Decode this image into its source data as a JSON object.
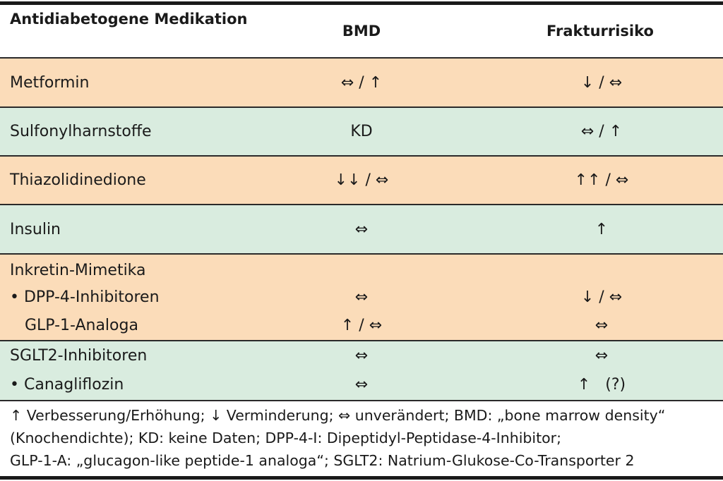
{
  "header": {
    "col_medication": "Antidiabetogene Medikation",
    "col_bmd": "BMD",
    "col_fracture": "Frakturrisiko"
  },
  "rows": [
    {
      "color": "#fbdcb9",
      "lines": [
        {
          "name": "Metformin",
          "bmd": "⇔ / ↑",
          "fracture": "↓ / ⇔"
        }
      ]
    },
    {
      "color": "#d9ecdf",
      "lines": [
        {
          "name": "Sulfonylharnstoffe",
          "bmd": "KD",
          "fracture": "⇔ / ↑"
        }
      ]
    },
    {
      "color": "#fbdcb9",
      "lines": [
        {
          "name": "Thiazolidinedione",
          "bmd": "↓↓ / ⇔",
          "fracture": "↑↑ / ⇔"
        }
      ]
    },
    {
      "color": "#d9ecdf",
      "lines": [
        {
          "name": "Insulin",
          "bmd": "⇔",
          "fracture": "↑"
        }
      ]
    },
    {
      "color": "#fbdcb9",
      "lines": [
        {
          "name": "Inkretin-Mimetika",
          "bmd": "",
          "fracture": ""
        },
        {
          "name": "• DPP-4-Inhibitoren",
          "bmd": "⇔",
          "fracture": "↓ / ⇔"
        },
        {
          "name": "   GLP-1-Analoga",
          "bmd": "↑ / ⇔",
          "fracture": "⇔"
        }
      ]
    },
    {
      "color": "#d9ecdf",
      "lines": [
        {
          "name": "SGLT2-Inhibitoren",
          "bmd": "⇔",
          "fracture": "⇔"
        },
        {
          "name": "• Canagliflozin",
          "bmd": "⇔",
          "fracture": "↑   (?)"
        }
      ]
    }
  ],
  "footer": {
    "line1": "↑ Verbesserung/Erhöhung; ↓ Verminderung; ⇔ unverändert; BMD: „bone marrow density“",
    "line2": "(Knochendichte); KD: keine Daten; DPP-4-I: Dipeptidyl-Peptidase-4-Inhibitor;",
    "line3": "GLP-1-A: „glucagon-like peptide-1 analoga“; SGLT2: Natrium-Glukose-Co-Transporter 2"
  }
}
